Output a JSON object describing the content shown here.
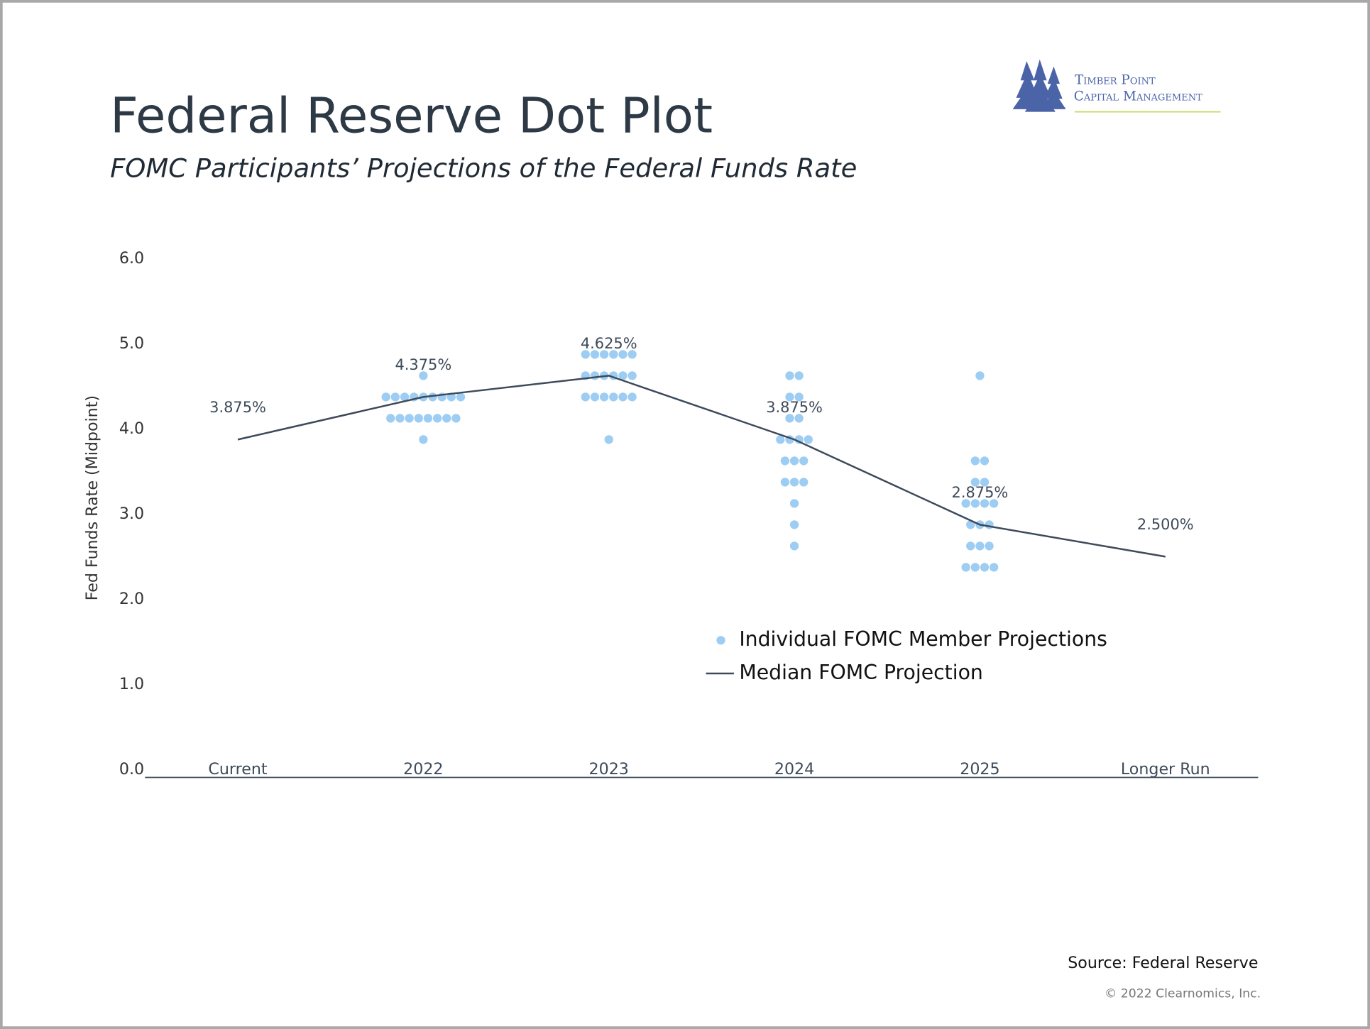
{
  "chart_data": {
    "type": "dot_plot",
    "title": "Federal Reserve Dot Plot",
    "subtitle": "FOMC Participants’ Projections of the Federal Funds Rate",
    "y_label": "Fed Funds Rate (Midpoint)",
    "categories": [
      "Current",
      "2022",
      "2023",
      "2024",
      "2025",
      "Longer Run"
    ],
    "ylim": [
      0,
      6
    ],
    "yticks": [
      {
        "value": 0,
        "label": "0.0"
      },
      {
        "value": 1,
        "label": "1.0"
      },
      {
        "value": 2,
        "label": "2.0"
      },
      {
        "value": 3,
        "label": "3.0"
      },
      {
        "value": 4,
        "label": "4.0"
      },
      {
        "value": 5,
        "label": "5.0"
      },
      {
        "value": 6,
        "label": "6.0"
      }
    ],
    "series": [
      {
        "name": "Individual FOMC Member Projections",
        "type": "dots",
        "color": "#9dcdf2",
        "values": [
          [],
          [
            4.625,
            4.375,
            4.375,
            4.375,
            4.375,
            4.375,
            4.375,
            4.375,
            4.375,
            4.375,
            4.125,
            4.125,
            4.125,
            4.125,
            4.125,
            4.125,
            4.125,
            4.125,
            3.875
          ],
          [
            4.875,
            4.875,
            4.875,
            4.875,
            4.875,
            4.875,
            4.625,
            4.625,
            4.625,
            4.625,
            4.625,
            4.625,
            4.375,
            4.375,
            4.375,
            4.375,
            4.375,
            4.375,
            3.875
          ],
          [
            4.625,
            4.625,
            4.375,
            4.375,
            4.125,
            4.125,
            3.875,
            3.875,
            3.875,
            3.875,
            3.625,
            3.625,
            3.625,
            3.375,
            3.375,
            3.375,
            3.125,
            2.875,
            2.625
          ],
          [
            4.625,
            3.625,
            3.625,
            3.375,
            3.375,
            3.125,
            3.125,
            3.125,
            3.125,
            2.875,
            2.875,
            2.875,
            2.625,
            2.625,
            2.625,
            2.375,
            2.375,
            2.375,
            2.375
          ],
          []
        ]
      },
      {
        "name": "Median FOMC Projection",
        "type": "line",
        "color": "#3d4a5a",
        "values": [
          3.875,
          4.375,
          4.625,
          3.875,
          2.875,
          2.5
        ],
        "value_labels": [
          "3.875%",
          "4.375%",
          "4.625%",
          "3.875%",
          "2.875%",
          "2.500%"
        ]
      }
    ],
    "source": "Source: Federal Reserve",
    "copyright": "© 2022 Clearnomics, Inc."
  },
  "logo": {
    "line1": "Timber Point",
    "line2": "Capital Management"
  }
}
